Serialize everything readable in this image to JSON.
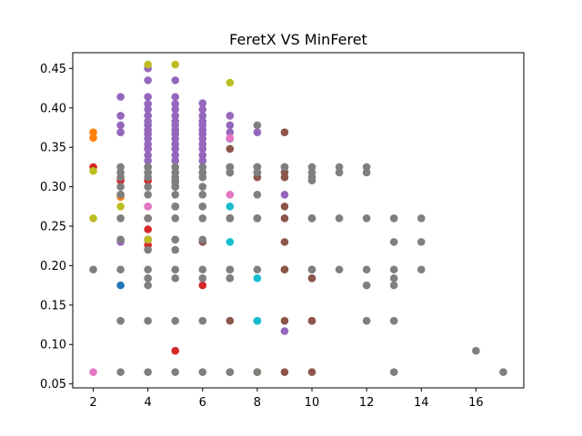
{
  "chart_data": {
    "type": "scatter",
    "title": "FeretX VS MinFeret",
    "xlabel": "",
    "ylabel": "",
    "xlim": [
      1.25,
      17.75
    ],
    "ylim": [
      0.045,
      0.47
    ],
    "x_ticks": [
      2,
      4,
      6,
      8,
      10,
      12,
      14,
      16
    ],
    "y_ticks": [
      0.05,
      0.1,
      0.15,
      0.2,
      0.25,
      0.3,
      0.35,
      0.4,
      0.45
    ],
    "grid": false,
    "legend": "none",
    "series": [
      {
        "color": "#1f77b4",
        "x": [
          3,
          3,
          3,
          5
        ],
        "y": [
          0.233,
          0.175,
          0.29,
          0.233
        ]
      },
      {
        "color": "#ff7f0e",
        "x": [
          2,
          2,
          3,
          7,
          8,
          5
        ],
        "y": [
          0.369,
          0.362,
          0.287,
          0.184,
          0.065,
          0.275
        ]
      },
      {
        "color": "#2ca02c",
        "x": [
          5,
          5
        ],
        "y": [
          0.275,
          0.306
        ]
      },
      {
        "color": "#d62728",
        "x": [
          2,
          3,
          4,
          4,
          4,
          4,
          4,
          4,
          5,
          5,
          6
        ],
        "y": [
          0.325,
          0.308,
          0.348,
          0.308,
          0.26,
          0.246,
          0.226,
          0.233,
          0.3,
          0.092,
          0.175
        ]
      },
      {
        "color": "#9467bd",
        "x": [
          3,
          3,
          3,
          3,
          4,
          4,
          4,
          4,
          4,
          4,
          4,
          4,
          4,
          4,
          4,
          4,
          4,
          4,
          4,
          4,
          4,
          4,
          4,
          5,
          5,
          5,
          5,
          5,
          5,
          5,
          5,
          5,
          5,
          5,
          5,
          5,
          5,
          5,
          5,
          6,
          6,
          6,
          6,
          6,
          6,
          6,
          6,
          6,
          6,
          6,
          6,
          7,
          7,
          7,
          7,
          3,
          8,
          9,
          9,
          10,
          7
        ],
        "y": [
          0.414,
          0.39,
          0.378,
          0.369,
          0.45,
          0.435,
          0.414,
          0.405,
          0.398,
          0.39,
          0.383,
          0.378,
          0.372,
          0.367,
          0.361,
          0.354,
          0.348,
          0.34,
          0.333,
          0.325,
          0.318,
          0.275,
          0.233,
          0.435,
          0.414,
          0.405,
          0.398,
          0.39,
          0.383,
          0.378,
          0.372,
          0.367,
          0.361,
          0.354,
          0.348,
          0.34,
          0.333,
          0.325,
          0.318,
          0.406,
          0.398,
          0.39,
          0.383,
          0.378,
          0.372,
          0.367,
          0.361,
          0.354,
          0.348,
          0.34,
          0.333,
          0.39,
          0.378,
          0.369,
          0.361,
          0.23,
          0.369,
          0.29,
          0.117,
          0.184,
          0.065
        ]
      },
      {
        "color": "#8c564b",
        "x": [
          7,
          7,
          7,
          8,
          8,
          8,
          9,
          9,
          9,
          9,
          9,
          9,
          9,
          9,
          9,
          9,
          10,
          10,
          10,
          10,
          10,
          7,
          7,
          6,
          7,
          8,
          9,
          10
        ],
        "y": [
          0.348,
          0.325,
          0.318,
          0.325,
          0.318,
          0.312,
          0.369,
          0.325,
          0.318,
          0.312,
          0.275,
          0.26,
          0.23,
          0.195,
          0.13,
          0.065,
          0.26,
          0.195,
          0.184,
          0.13,
          0.065,
          0.26,
          0.13,
          0.23,
          0.195,
          0.26,
          0.195,
          0.13
        ]
      },
      {
        "color": "#e377c2",
        "x": [
          2,
          4,
          4,
          6,
          6,
          7,
          7
        ],
        "y": [
          0.065,
          0.275,
          0.233,
          0.275,
          0.318,
          0.362,
          0.29
        ]
      },
      {
        "color": "#7f7f7f",
        "x": [
          2,
          3,
          3,
          3,
          3,
          3,
          3,
          3,
          3,
          3,
          3,
          4,
          4,
          4,
          4,
          4,
          4,
          4,
          4,
          4,
          4,
          4,
          4,
          4,
          4,
          5,
          5,
          5,
          5,
          5,
          5,
          5,
          5,
          5,
          5,
          5,
          5,
          5,
          5,
          6,
          6,
          6,
          6,
          6,
          6,
          6,
          6,
          6,
          6,
          6,
          6,
          7,
          7,
          7,
          7,
          7,
          7,
          8,
          8,
          8,
          8,
          8,
          8,
          8,
          8,
          9,
          10,
          10,
          10,
          10,
          10,
          10,
          11,
          11,
          11,
          11,
          12,
          12,
          12,
          12,
          12,
          12,
          13,
          13,
          13,
          13,
          13,
          13,
          13,
          14,
          14,
          14,
          16,
          17
        ],
        "y": [
          0.195,
          0.325,
          0.318,
          0.312,
          0.26,
          0.233,
          0.195,
          0.13,
          0.065,
          0.3,
          0.29,
          0.325,
          0.318,
          0.312,
          0.3,
          0.26,
          0.233,
          0.195,
          0.184,
          0.175,
          0.13,
          0.065,
          0.22,
          0.29,
          0.184,
          0.325,
          0.318,
          0.312,
          0.3,
          0.26,
          0.233,
          0.195,
          0.184,
          0.13,
          0.065,
          0.29,
          0.275,
          0.308,
          0.22,
          0.325,
          0.318,
          0.312,
          0.26,
          0.233,
          0.195,
          0.184,
          0.13,
          0.065,
          0.29,
          0.275,
          0.3,
          0.325,
          0.318,
          0.26,
          0.195,
          0.184,
          0.065,
          0.378,
          0.325,
          0.318,
          0.29,
          0.26,
          0.195,
          0.13,
          0.065,
          0.325,
          0.325,
          0.318,
          0.312,
          0.308,
          0.26,
          0.195,
          0.325,
          0.318,
          0.26,
          0.195,
          0.325,
          0.318,
          0.26,
          0.195,
          0.175,
          0.13,
          0.26,
          0.23,
          0.195,
          0.184,
          0.175,
          0.13,
          0.065,
          0.26,
          0.23,
          0.195,
          0.092,
          0.065
        ]
      },
      {
        "color": "#bcbd22",
        "x": [
          2,
          2,
          3,
          4,
          4,
          5,
          7
        ],
        "y": [
          0.32,
          0.26,
          0.275,
          0.455,
          0.233,
          0.455,
          0.432
        ]
      },
      {
        "color": "#17becf",
        "x": [
          7,
          7,
          8,
          8
        ],
        "y": [
          0.275,
          0.23,
          0.184,
          0.13
        ]
      }
    ]
  }
}
